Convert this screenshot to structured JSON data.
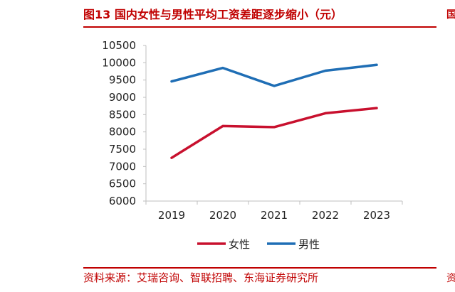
{
  "header": {
    "title": "图13  国内女性与男性平均工资差距逐步缩小（元）",
    "edge_char": "国"
  },
  "footer": {
    "source": "资料来源：艾瑞咨询、智联招聘、东海证券研究所",
    "edge_char": "资"
  },
  "colors": {
    "accent": "#c00000",
    "female": "#c8102e",
    "male": "#1f6eb5",
    "axis": "#bfbfbf"
  },
  "chart_data": {
    "type": "line",
    "title": "",
    "xlabel": "",
    "ylabel": "",
    "categories": [
      "2019",
      "2020",
      "2021",
      "2022",
      "2023"
    ],
    "ylim": [
      6000,
      10500
    ],
    "yticks": [
      6000,
      6500,
      7000,
      7500,
      8000,
      8500,
      9000,
      9500,
      10000,
      10500
    ],
    "grid": false,
    "legend_position": "bottom",
    "series": [
      {
        "name": "女性",
        "color": "#c8102e",
        "values": [
          7250,
          8170,
          8140,
          8540,
          8690
        ]
      },
      {
        "name": "男性",
        "color": "#1f6eb5",
        "values": [
          9460,
          9850,
          9330,
          9770,
          9940
        ]
      }
    ]
  }
}
